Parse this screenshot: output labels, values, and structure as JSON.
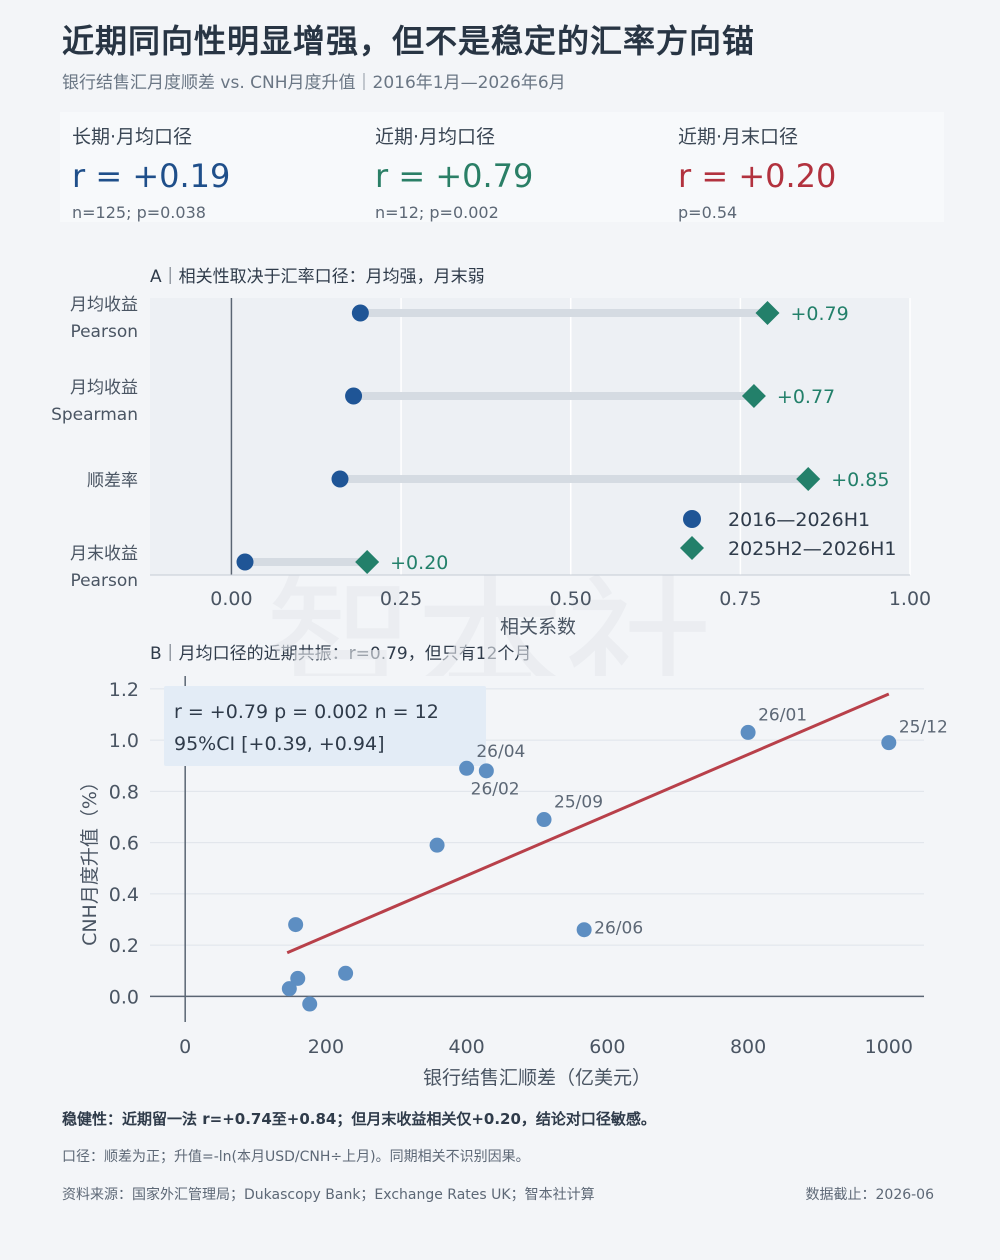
{
  "header": {
    "title": "近期同向性明显增强，但不是稳定的汇率方向锚",
    "subtitle": "银行结售汇月度顺差 vs. CNH月度升值｜2016年1月—2026年6月"
  },
  "stats": [
    {
      "label": "长期·月均口径",
      "value": "r = +0.19",
      "sub": "n=125; p=0.038"
    },
    {
      "label": "近期·月均口径",
      "value": "r = +0.79",
      "sub": "n=12; p=0.002"
    },
    {
      "label": "近期·月末口径",
      "value": "r = +0.20",
      "sub": "p=0.54"
    }
  ],
  "colors": {
    "long": "#1f5596",
    "recent": "#23806a",
    "accent_red": "#b8404a",
    "scatter": "#5d8ec2",
    "grid": "#dfe4ea"
  },
  "chart_data": [
    {
      "type": "dumbbell",
      "title": "A｜相关性取决于汇率口径：月均强，月末弱",
      "xlabel": "相关系数",
      "xlim": [
        -0.12,
        1.0
      ],
      "xticks": [
        "0.00",
        "0.25",
        "0.50",
        "0.75",
        "1.00"
      ],
      "xtick_values": [
        0,
        0.25,
        0.5,
        0.75,
        1.0
      ],
      "categories": [
        {
          "line1": "月均收益",
          "line2": "Pearson"
        },
        {
          "line1": "月均收益",
          "line2": "Spearman"
        },
        {
          "line1": "顺差率",
          "line2": ""
        },
        {
          "line1": "月末收益",
          "line2": "Pearson"
        }
      ],
      "series": [
        {
          "name": "2016—2026H1",
          "values": [
            0.19,
            0.18,
            0.16,
            0.02
          ]
        },
        {
          "name": "2025H2—2026H1",
          "values": [
            0.79,
            0.77,
            0.85,
            0.2
          ]
        }
      ],
      "value_labels": [
        "+0.79",
        "+0.77",
        "+0.85",
        "+0.20"
      ],
      "legend_position": "lower-right"
    },
    {
      "type": "scatter",
      "title": "B｜月均口径的近期共振：r=0.79，但只有12个月",
      "xlabel": "银行结售汇顺差（亿美元）",
      "ylabel": "CNH月度升值（%）",
      "xlim": [
        -50,
        1050
      ],
      "ylim": [
        -0.1,
        1.25
      ],
      "xticks": [
        "0",
        "200",
        "400",
        "600",
        "800",
        "1000"
      ],
      "xtick_values": [
        0,
        200,
        400,
        600,
        800,
        1000
      ],
      "yticks": [
        "0.0",
        "0.2",
        "0.4",
        "0.6",
        "0.8",
        "1.0",
        "1.2"
      ],
      "ytick_values": [
        0,
        0.2,
        0.4,
        0.6,
        0.8,
        1.0,
        1.2
      ],
      "points": [
        {
          "x": 1000,
          "y": 0.99,
          "label": "25/12"
        },
        {
          "x": 800,
          "y": 1.03,
          "label": "26/01"
        },
        {
          "x": 400,
          "y": 0.89,
          "label": "26/02"
        },
        {
          "x": 428,
          "y": 0.88,
          "label": "26/04"
        },
        {
          "x": 510,
          "y": 0.69,
          "label": "25/09"
        },
        {
          "x": 567,
          "y": 0.26,
          "label": "26/06"
        },
        {
          "x": 358,
          "y": 0.59,
          "label": ""
        },
        {
          "x": 157,
          "y": 0.28,
          "label": ""
        },
        {
          "x": 160,
          "y": 0.07,
          "label": ""
        },
        {
          "x": 228,
          "y": 0.09,
          "label": ""
        },
        {
          "x": 148,
          "y": 0.03,
          "label": ""
        },
        {
          "x": 177,
          "y": -0.03,
          "label": ""
        }
      ],
      "fit_line": {
        "x": [
          145,
          1000
        ],
        "y": [
          0.17,
          1.18
        ]
      },
      "annotation": {
        "line1": "r = +0.79    p = 0.002    n = 12",
        "line2": "95%CI [+0.39, +0.94]"
      }
    }
  ],
  "footer": {
    "robustness": "稳健性：近期留一法 r=+0.74至+0.84；但月末收益相关仅+0.20，结论对口径敏感。",
    "note": "口径：顺差为正；升值=-ln(本月USD/CNH÷上月)。同期相关不识别因果。",
    "source": "资料来源：国家外汇管理局；Dukascopy Bank；Exchange Rates UK；智本社计算",
    "cutoff": "数据截止：2026-06"
  },
  "watermark": "智本社"
}
